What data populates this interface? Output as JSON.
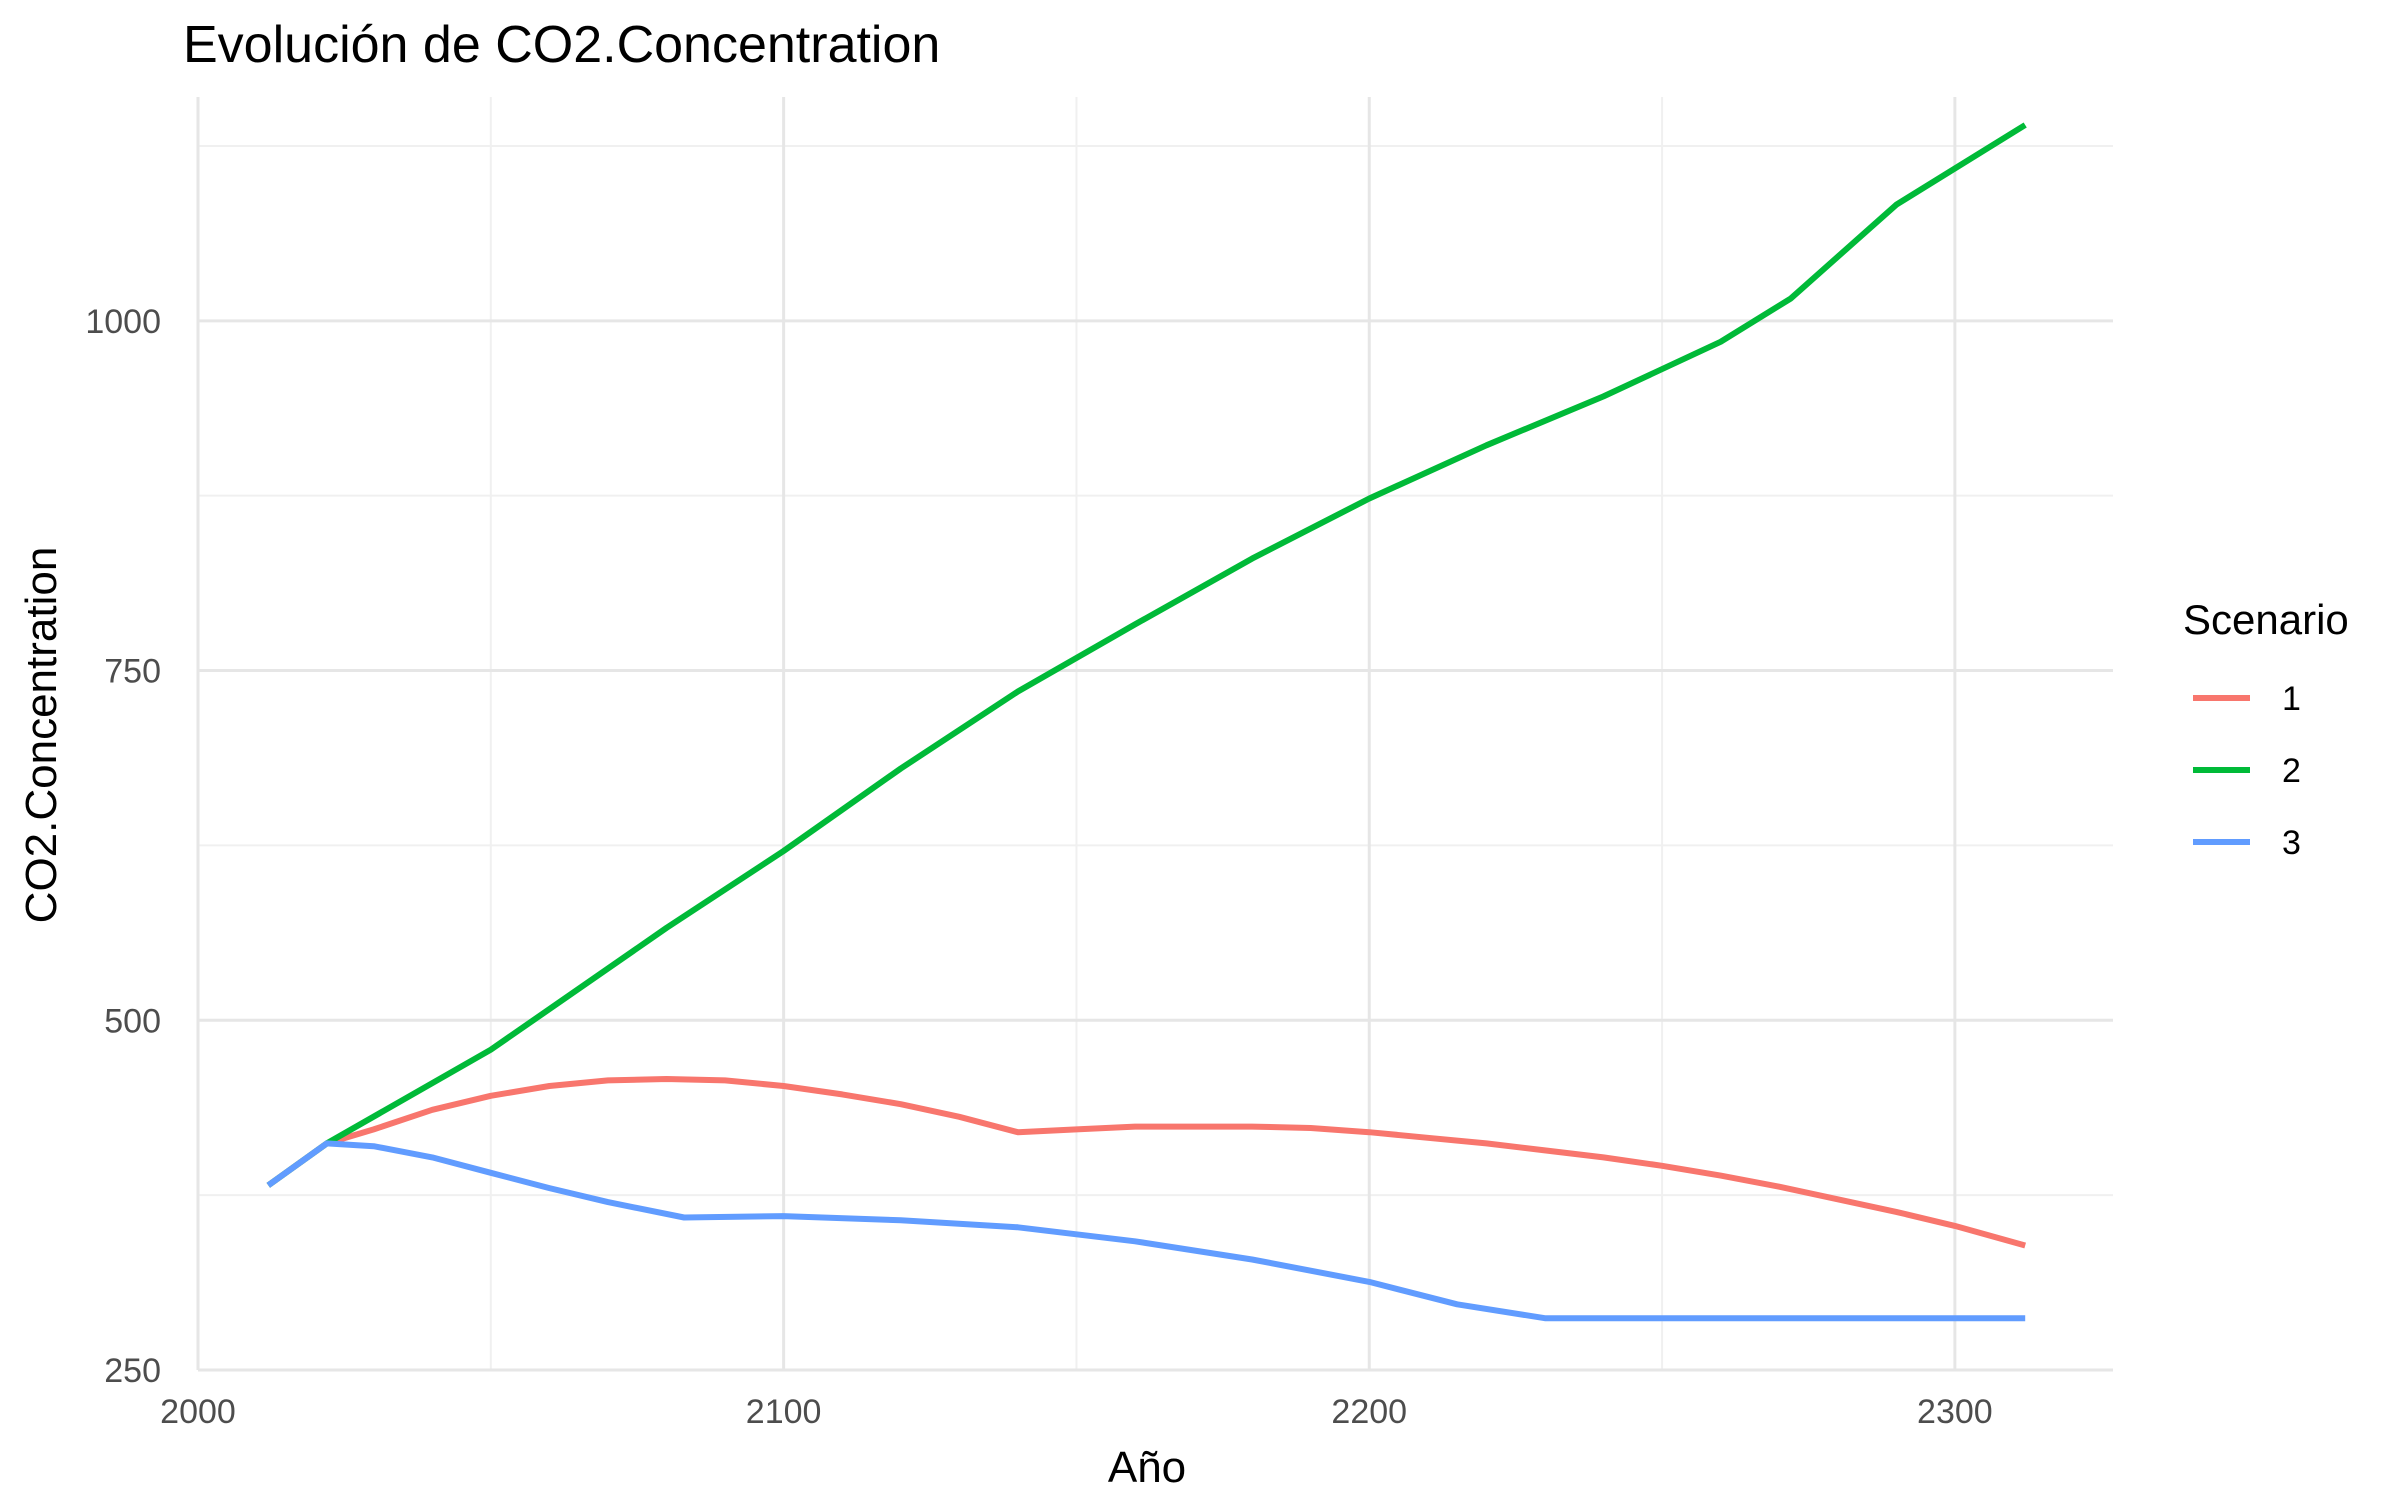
{
  "chart_data": {
    "type": "line",
    "title": "Evolución de CO2.Concentration",
    "xlabel": "Año",
    "ylabel": "CO2.Concentration",
    "xlim": [
      2000,
      2327
    ],
    "ylim": [
      250,
      1160
    ],
    "x_ticks": [
      2000,
      2100,
      2200,
      2300
    ],
    "x_minor_ticks": [
      2050,
      2150,
      2250
    ],
    "y_ticks": [
      250,
      500,
      750,
      1000
    ],
    "y_minor_ticks": [
      375,
      625,
      875,
      1125
    ],
    "grid": true,
    "legend": {
      "title": "Scenario",
      "position": "right"
    },
    "series": [
      {
        "name": "1",
        "color": "#F8766D",
        "points": [
          [
            2012,
            382
          ],
          [
            2022,
            412
          ],
          [
            2030,
            422
          ],
          [
            2040,
            436
          ],
          [
            2050,
            446
          ],
          [
            2060,
            453
          ],
          [
            2070,
            457
          ],
          [
            2080,
            458
          ],
          [
            2090,
            457
          ],
          [
            2100,
            453
          ],
          [
            2110,
            447
          ],
          [
            2120,
            440
          ],
          [
            2130,
            431
          ],
          [
            2140,
            420
          ],
          [
            2150,
            422
          ],
          [
            2160,
            424
          ],
          [
            2170,
            424
          ],
          [
            2180,
            424
          ],
          [
            2190,
            423
          ],
          [
            2200,
            420
          ],
          [
            2210,
            416
          ],
          [
            2220,
            412
          ],
          [
            2230,
            407
          ],
          [
            2240,
            402
          ],
          [
            2250,
            396
          ],
          [
            2260,
            389
          ],
          [
            2270,
            381
          ],
          [
            2280,
            372
          ],
          [
            2290,
            363
          ],
          [
            2300,
            353
          ],
          [
            2312,
            339
          ]
        ]
      },
      {
        "name": "2",
        "color": "#00BA38",
        "points": [
          [
            2012,
            382
          ],
          [
            2022,
            412
          ],
          [
            2050,
            479
          ],
          [
            2080,
            566
          ],
          [
            2100,
            621
          ],
          [
            2120,
            680
          ],
          [
            2140,
            735
          ],
          [
            2160,
            783
          ],
          [
            2180,
            830
          ],
          [
            2200,
            873
          ],
          [
            2220,
            911
          ],
          [
            2240,
            946
          ],
          [
            2260,
            985
          ],
          [
            2272,
            1016
          ],
          [
            2290,
            1083
          ],
          [
            2312,
            1140
          ]
        ]
      },
      {
        "name": "3",
        "color": "#619CFF",
        "points": [
          [
            2012,
            382
          ],
          [
            2022,
            412
          ],
          [
            2030,
            410
          ],
          [
            2040,
            402
          ],
          [
            2050,
            391
          ],
          [
            2060,
            380
          ],
          [
            2070,
            370
          ],
          [
            2083,
            359
          ],
          [
            2100,
            360
          ],
          [
            2120,
            357
          ],
          [
            2140,
            352
          ],
          [
            2160,
            342
          ],
          [
            2180,
            329
          ],
          [
            2200,
            313
          ],
          [
            2215,
            297
          ],
          [
            2230,
            287
          ],
          [
            2250,
            287
          ],
          [
            2280,
            287
          ],
          [
            2312,
            287
          ]
        ]
      }
    ]
  }
}
